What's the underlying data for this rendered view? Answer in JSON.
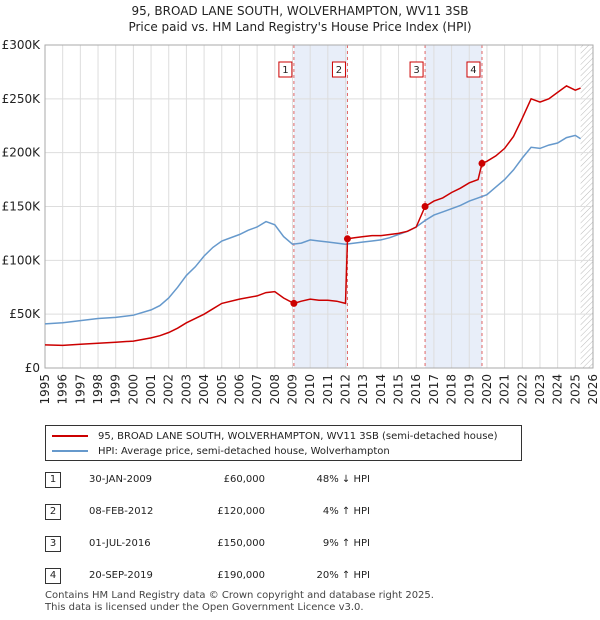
{
  "chart_data": {
    "type": "line",
    "title": "95, BROAD LANE SOUTH, WOLVERHAMPTON, WV11 3SB",
    "subtitle": "Price paid vs. HM Land Registry's House Price Index (HPI)",
    "xlim": [
      1995,
      2026
    ],
    "ylim": [
      0,
      300000
    ],
    "x_ticks": [
      1995,
      1996,
      1997,
      1998,
      1999,
      2000,
      2001,
      2002,
      2003,
      2004,
      2005,
      2006,
      2007,
      2008,
      2009,
      2010,
      2011,
      2012,
      2013,
      2014,
      2015,
      2016,
      2017,
      2018,
      2019,
      2020,
      2021,
      2022,
      2023,
      2024,
      2025,
      2026
    ],
    "x_tick_labels": [
      "1995",
      "1996",
      "1997",
      "1998",
      "1999",
      "2000",
      "2001",
      "2002",
      "2003",
      "2004",
      "2005",
      "2006",
      "2007",
      "2008",
      "2009",
      "2010",
      "2011",
      "2012",
      "2013",
      "2014",
      "2015",
      "2016",
      "2017",
      "2018",
      "2019",
      "2020",
      "2021",
      "2022",
      "2023",
      "2024",
      "2025",
      "2026"
    ],
    "y_ticks": [
      0,
      50000,
      100000,
      150000,
      200000,
      250000,
      300000
    ],
    "y_tick_labels": [
      "£0",
      "£50K",
      "£100K",
      "£150K",
      "£200K",
      "£250K",
      "£300K"
    ],
    "grid": true,
    "series": [
      {
        "name": "95, BROAD LANE SOUTH, WOLVERHAMPTON, WV11 3SB (semi-detached house)",
        "color": "#cc0000",
        "points": [
          [
            1995.0,
            21500
          ],
          [
            1996.0,
            21000
          ],
          [
            1997.0,
            22000
          ],
          [
            1998.0,
            23000
          ],
          [
            1999.0,
            24000
          ],
          [
            2000.0,
            25000
          ],
          [
            2001.0,
            28000
          ],
          [
            2001.5,
            30000
          ],
          [
            2002.0,
            33000
          ],
          [
            2002.5,
            37000
          ],
          [
            2003.0,
            42000
          ],
          [
            2004.0,
            50000
          ],
          [
            2004.5,
            55000
          ],
          [
            2005.0,
            60000
          ],
          [
            2006.0,
            64000
          ],
          [
            2007.0,
            67000
          ],
          [
            2007.5,
            70000
          ],
          [
            2008.0,
            71000
          ],
          [
            2008.5,
            65000
          ],
          [
            2009.08,
            60000
          ],
          [
            2009.5,
            62000
          ],
          [
            2010.0,
            64000
          ],
          [
            2010.5,
            63000
          ],
          [
            2011.0,
            63000
          ],
          [
            2011.5,
            62000
          ],
          [
            2012.0,
            60000
          ],
          [
            2012.11,
            120000
          ],
          [
            2012.5,
            121000
          ],
          [
            2013.0,
            122000
          ],
          [
            2013.5,
            123000
          ],
          [
            2014.0,
            123000
          ],
          [
            2014.5,
            124000
          ],
          [
            2015.0,
            125000
          ],
          [
            2015.5,
            127000
          ],
          [
            2016.0,
            131000
          ],
          [
            2016.5,
            150000
          ],
          [
            2017.0,
            155000
          ],
          [
            2017.5,
            158000
          ],
          [
            2018.0,
            163000
          ],
          [
            2018.5,
            167000
          ],
          [
            2019.0,
            172000
          ],
          [
            2019.5,
            175000
          ],
          [
            2019.72,
            190000
          ],
          [
            2020.0,
            192000
          ],
          [
            2020.5,
            197000
          ],
          [
            2021.0,
            204000
          ],
          [
            2021.5,
            215000
          ],
          [
            2022.0,
            232000
          ],
          [
            2022.5,
            250000
          ],
          [
            2023.0,
            247000
          ],
          [
            2023.5,
            250000
          ],
          [
            2024.0,
            256000
          ],
          [
            2024.5,
            262000
          ],
          [
            2025.0,
            258000
          ],
          [
            2025.3,
            260000
          ]
        ]
      },
      {
        "name": "HPI: Average price, semi-detached house, Wolverhampton",
        "color": "#6699cc",
        "points": [
          [
            1995.0,
            41000
          ],
          [
            1996.0,
            42000
          ],
          [
            1997.0,
            44000
          ],
          [
            1998.0,
            46000
          ],
          [
            1999.0,
            47000
          ],
          [
            2000.0,
            49000
          ],
          [
            2001.0,
            54000
          ],
          [
            2001.5,
            58000
          ],
          [
            2002.0,
            65000
          ],
          [
            2002.5,
            75000
          ],
          [
            2003.0,
            86000
          ],
          [
            2003.5,
            94000
          ],
          [
            2004.0,
            104000
          ],
          [
            2004.5,
            112000
          ],
          [
            2005.0,
            118000
          ],
          [
            2006.0,
            124000
          ],
          [
            2006.5,
            128000
          ],
          [
            2007.0,
            131000
          ],
          [
            2007.5,
            136000
          ],
          [
            2008.0,
            133000
          ],
          [
            2008.5,
            122000
          ],
          [
            2009.0,
            115000
          ],
          [
            2009.5,
            116000
          ],
          [
            2010.0,
            119000
          ],
          [
            2010.5,
            118000
          ],
          [
            2011.0,
            117000
          ],
          [
            2011.5,
            116000
          ],
          [
            2012.0,
            115000
          ],
          [
            2012.5,
            116000
          ],
          [
            2013.0,
            117000
          ],
          [
            2013.5,
            118000
          ],
          [
            2014.0,
            119000
          ],
          [
            2014.5,
            121000
          ],
          [
            2015.0,
            124000
          ],
          [
            2015.5,
            127000
          ],
          [
            2016.0,
            131000
          ],
          [
            2016.5,
            137000
          ],
          [
            2017.0,
            142000
          ],
          [
            2017.5,
            145000
          ],
          [
            2018.0,
            148000
          ],
          [
            2018.5,
            151000
          ],
          [
            2019.0,
            155000
          ],
          [
            2019.5,
            158000
          ],
          [
            2020.0,
            161000
          ],
          [
            2020.5,
            168000
          ],
          [
            2021.0,
            175000
          ],
          [
            2021.5,
            184000
          ],
          [
            2022.0,
            195000
          ],
          [
            2022.5,
            205000
          ],
          [
            2023.0,
            204000
          ],
          [
            2023.5,
            207000
          ],
          [
            2024.0,
            209000
          ],
          [
            2024.5,
            214000
          ],
          [
            2025.0,
            216000
          ],
          [
            2025.3,
            213000
          ]
        ]
      }
    ],
    "sales": [
      {
        "n": "1",
        "x": 2009.08,
        "price": 60000
      },
      {
        "n": "2",
        "x": 2012.11,
        "price": 120000
      },
      {
        "n": "3",
        "x": 2016.5,
        "price": 150000
      },
      {
        "n": "4",
        "x": 2019.72,
        "price": 190000
      }
    ],
    "shaded_ranges": [
      [
        2009.08,
        2012.11
      ],
      [
        2016.5,
        2019.72
      ]
    ],
    "forecast_from": 2025.3
  },
  "legend": {
    "property_label": "95, BROAD LANE SOUTH, WOLVERHAMPTON, WV11 3SB (semi-detached house)",
    "hpi_label": "HPI: Average price, semi-detached house, Wolverhampton",
    "property_color": "#cc0000",
    "hpi_color": "#6699cc"
  },
  "sales_table": [
    {
      "num": "1",
      "date": "30-JAN-2009",
      "price": "£60,000",
      "hpi": "48% ↓ HPI"
    },
    {
      "num": "2",
      "date": "08-FEB-2012",
      "price": "£120,000",
      "hpi": "4% ↑ HPI"
    },
    {
      "num": "3",
      "date": "01-JUL-2016",
      "price": "£150,000",
      "hpi": "9% ↑ HPI"
    },
    {
      "num": "4",
      "date": "20-SEP-2019",
      "price": "£190,000",
      "hpi": "20% ↑ HPI"
    }
  ],
  "footer": {
    "line1": "Contains HM Land Registry data © Crown copyright and database right 2025.",
    "line2": "This data is licensed under the Open Government Licence v3.0."
  }
}
